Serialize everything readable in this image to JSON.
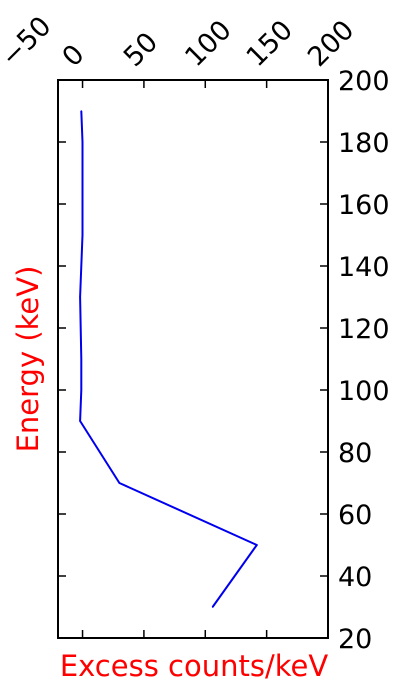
{
  "chart_data": {
    "type": "line",
    "title": "",
    "xlabel": "Excess counts/keV",
    "ylabel": "Energy (keV)",
    "xlim": [
      -20,
      200
    ],
    "ylim": [
      20,
      200
    ],
    "x_ticks": [
      -50,
      0,
      50,
      100,
      150,
      200
    ],
    "x_tick_labels": [
      "−50",
      "0",
      "50",
      "100",
      "150",
      "200"
    ],
    "x_ticks_position": "top",
    "y_ticks": [
      20,
      40,
      60,
      80,
      100,
      120,
      140,
      160,
      180,
      200
    ],
    "y_tick_labels": [
      "20",
      "40",
      "60",
      "80",
      "100",
      "120",
      "140",
      "160",
      "180",
      "200"
    ],
    "y_ticks_position": "right",
    "grid": false,
    "series": [
      {
        "color": "#0000ee",
        "x": [
          106,
          142,
          30,
          -2,
          -1,
          -1,
          -2,
          0,
          0,
          0,
          -1
        ],
        "y": [
          30,
          50,
          70,
          90,
          100,
          110,
          130,
          150,
          170,
          180,
          190
        ]
      }
    ],
    "colors": {
      "axis_label": "#ff0000",
      "line": "#0000ee",
      "frame": "#000000"
    }
  }
}
